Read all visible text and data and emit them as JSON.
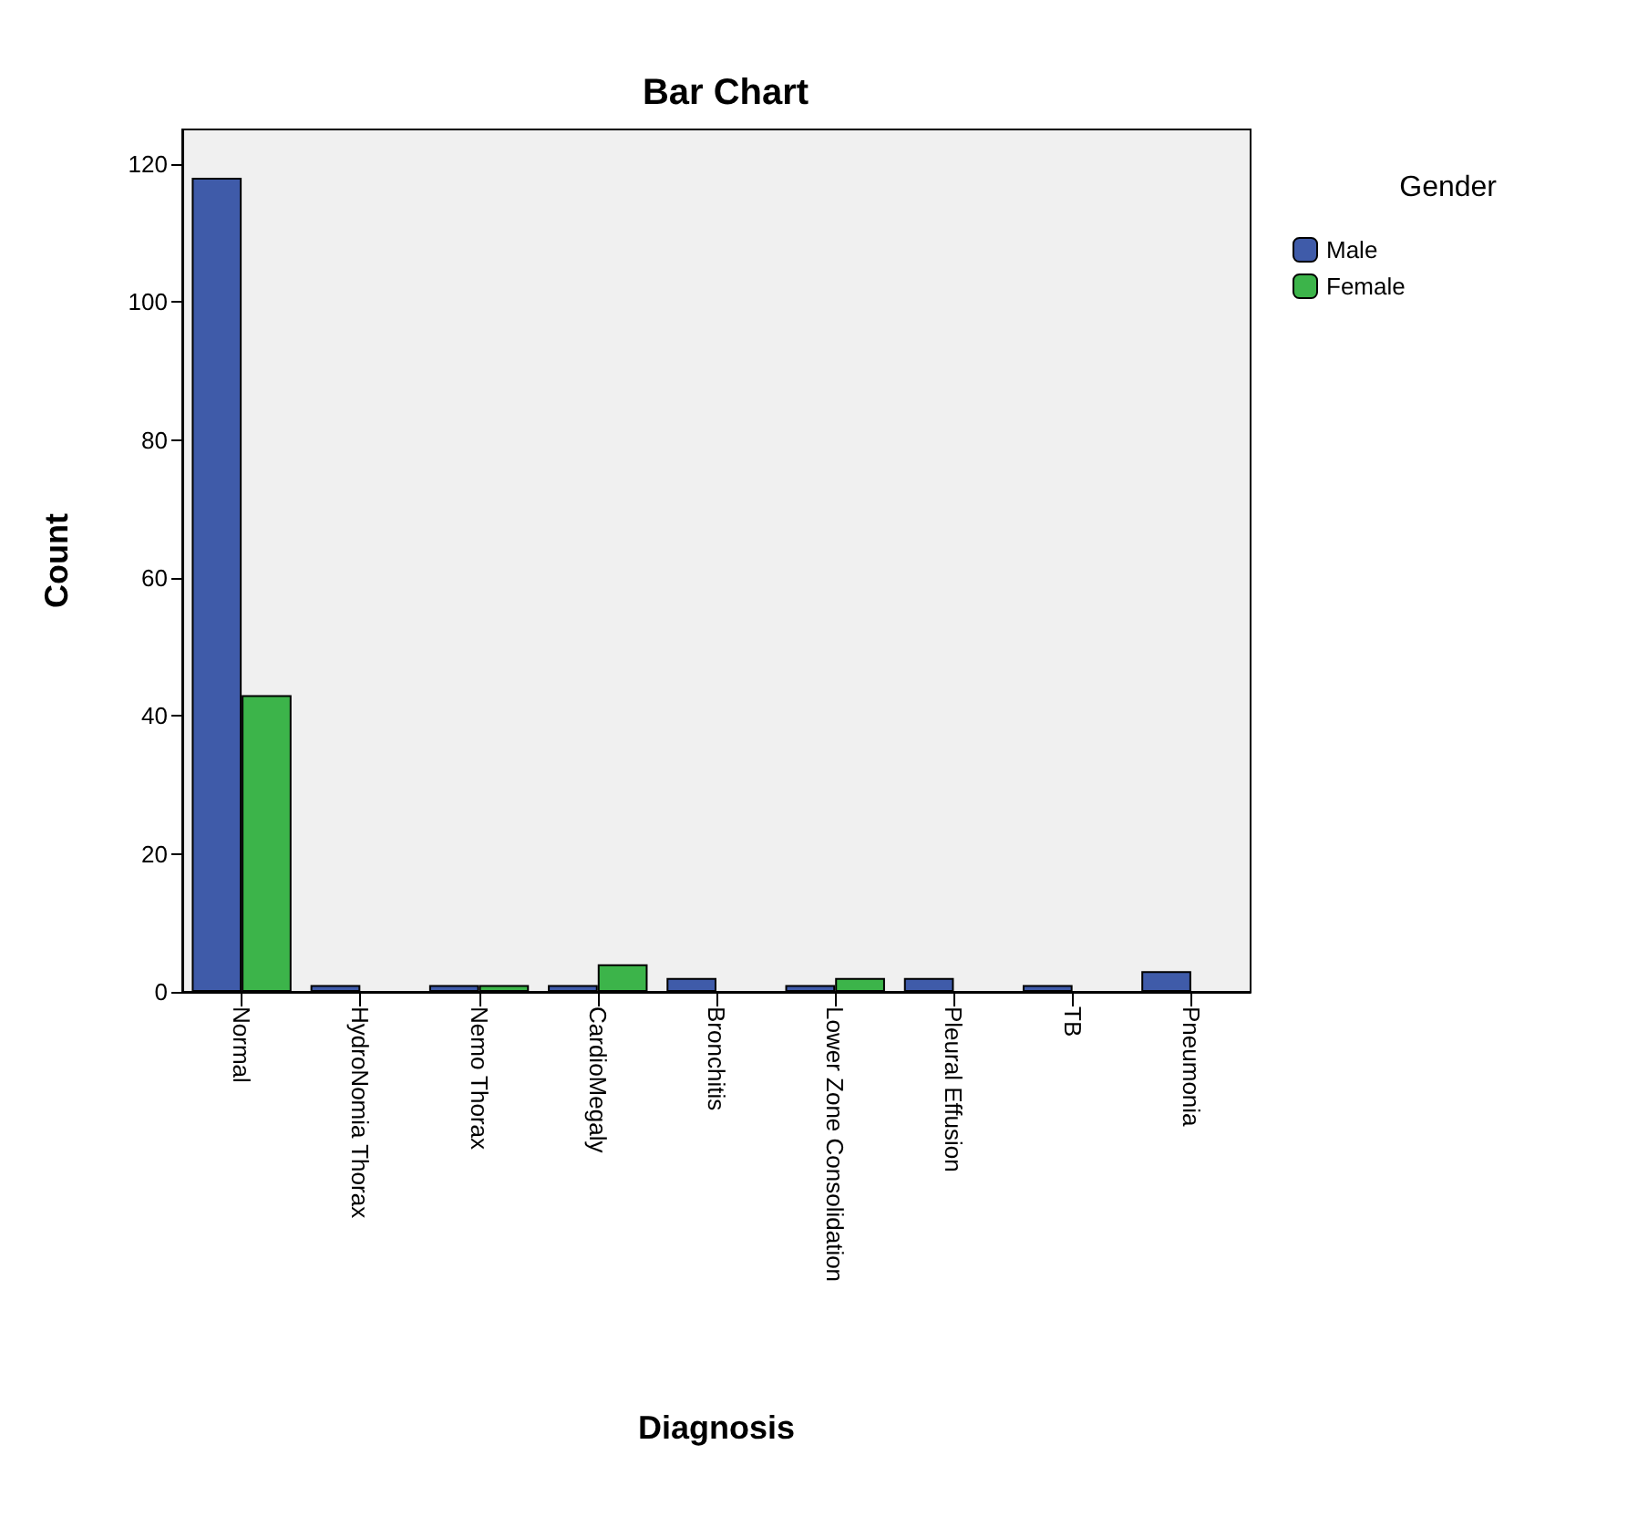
{
  "chart_data": {
    "type": "bar",
    "title": "Bar Chart",
    "xlabel": "Diagnosis",
    "ylabel": "Count",
    "legend_title": "Gender",
    "categories": [
      "Normal",
      "HydroNomia Thorax",
      "Nemo Thorax",
      "CardioMegaly",
      "Bronchitis",
      "Lower Zone Consolidation",
      "Pleural Effusion",
      "TB",
      "Pneumonia"
    ],
    "series": [
      {
        "name": "Male",
        "color": "#3f5ba9",
        "values": [
          118,
          1,
          1,
          1,
          2,
          1,
          2,
          1,
          3
        ]
      },
      {
        "name": "Female",
        "color": "#3cb44a",
        "values": [
          43,
          null,
          1,
          4,
          null,
          2,
          null,
          null,
          null
        ]
      }
    ],
    "ylim": [
      0,
      125
    ],
    "yticks": [
      0,
      20,
      40,
      60,
      80,
      100,
      120
    ],
    "grid": false,
    "legend": "top right"
  }
}
